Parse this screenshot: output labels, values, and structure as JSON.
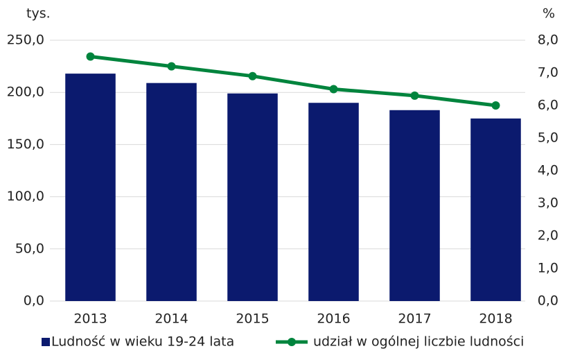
{
  "chart_data": {
    "type": "bar",
    "y_label": "tys.",
    "y2_label": "%",
    "categories": [
      "2013",
      "2014",
      "2015",
      "2016",
      "2017",
      "2018"
    ],
    "series": [
      {
        "name": "Ludność w wieku 19-24 lata",
        "type": "bar",
        "color": "#0b1a6e",
        "values": [
          218,
          209,
          199,
          190,
          183,
          175
        ]
      },
      {
        "name": "udział w ogólnej liczbie ludności",
        "type": "line",
        "axis": "y2",
        "color": "#00843d",
        "values": [
          7.5,
          7.2,
          6.9,
          6.5,
          6.3,
          6.0
        ]
      }
    ],
    "ylim": [
      0,
      250
    ],
    "yticks": [
      {
        "value": 0,
        "label": "0,0"
      },
      {
        "value": 50,
        "label": "50,0"
      },
      {
        "value": 100,
        "label": "100,0"
      },
      {
        "value": 150,
        "label": "150,0"
      },
      {
        "value": 200,
        "label": "200,0"
      },
      {
        "value": 250,
        "label": "250,0"
      }
    ],
    "y2lim": [
      0,
      8
    ],
    "y2ticks": [
      {
        "value": 0,
        "label": "0,0"
      },
      {
        "value": 1,
        "label": "1,0"
      },
      {
        "value": 2,
        "label": "2,0"
      },
      {
        "value": 3,
        "label": "3,0"
      },
      {
        "value": 4,
        "label": "4,0"
      },
      {
        "value": 5,
        "label": "5,0"
      },
      {
        "value": 6,
        "label": "6,0"
      },
      {
        "value": 7,
        "label": "7,0"
      },
      {
        "value": 8,
        "label": "8,0"
      }
    ],
    "grid": true,
    "legend": "bottom"
  }
}
